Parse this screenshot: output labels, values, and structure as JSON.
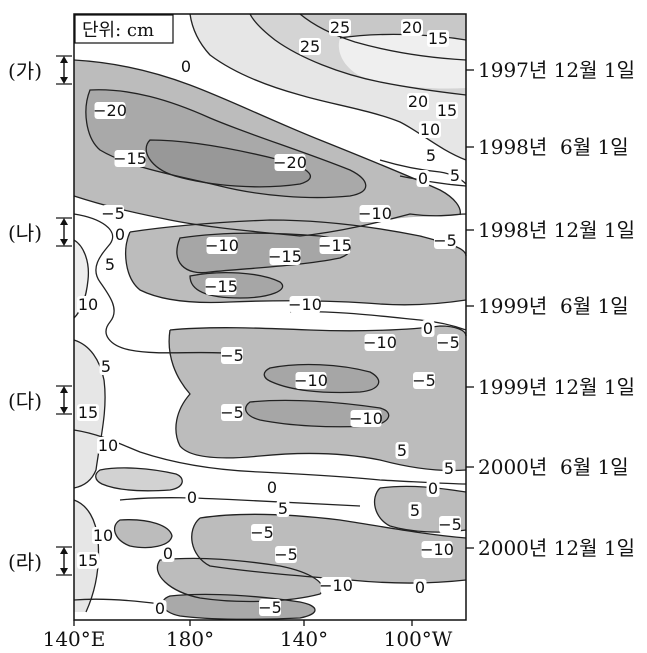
{
  "unit_box": "단위: cm",
  "x_axis": {
    "ticks": [
      "140°E",
      "180°",
      "140°",
      "100°W"
    ]
  },
  "date_labels": [
    "1997년 12월 1일",
    "1998년  6월 1일",
    "1998년 12월 1일",
    "1999년  6월 1일",
    "1999년 12월 1일",
    "2000년  6월 1일",
    "2000년 12월 1일"
  ],
  "period_markers": [
    "(가)",
    "(나)",
    "(다)",
    "(라)"
  ],
  "contour_labels": [
    {
      "text": "25"
    },
    {
      "text": "20"
    },
    {
      "text": "15"
    },
    {
      "text": "25"
    },
    {
      "text": "0"
    },
    {
      "text": "20"
    },
    {
      "text": "15"
    },
    {
      "text": "10"
    },
    {
      "text": "5"
    },
    {
      "text": "0"
    },
    {
      "text": "5"
    },
    {
      "text": "−20"
    },
    {
      "text": "−15"
    },
    {
      "text": "−20"
    },
    {
      "text": "−5"
    },
    {
      "text": "0"
    },
    {
      "text": "−10"
    },
    {
      "text": "−10"
    },
    {
      "text": "−15"
    },
    {
      "text": "−5"
    },
    {
      "text": "5"
    },
    {
      "text": "−15"
    },
    {
      "text": "−15"
    },
    {
      "text": "10"
    },
    {
      "text": "−10"
    },
    {
      "text": "0"
    },
    {
      "text": "−10"
    },
    {
      "text": "−5"
    },
    {
      "text": "−5"
    },
    {
      "text": "5"
    },
    {
      "text": "−10"
    },
    {
      "text": "−5"
    },
    {
      "text": "15"
    },
    {
      "text": "−5"
    },
    {
      "text": "−10"
    },
    {
      "text": "10"
    },
    {
      "text": "5"
    },
    {
      "text": "5"
    },
    {
      "text": "0"
    },
    {
      "text": "0"
    },
    {
      "text": "5"
    },
    {
      "text": "0"
    },
    {
      "text": "5"
    },
    {
      "text": "−5"
    },
    {
      "text": "10"
    },
    {
      "text": "−5"
    },
    {
      "text": "0"
    },
    {
      "text": "−10"
    },
    {
      "text": "15"
    },
    {
      "text": "−5"
    },
    {
      "text": "−10"
    },
    {
      "text": "0"
    },
    {
      "text": "0"
    },
    {
      "text": "−5"
    }
  ]
}
